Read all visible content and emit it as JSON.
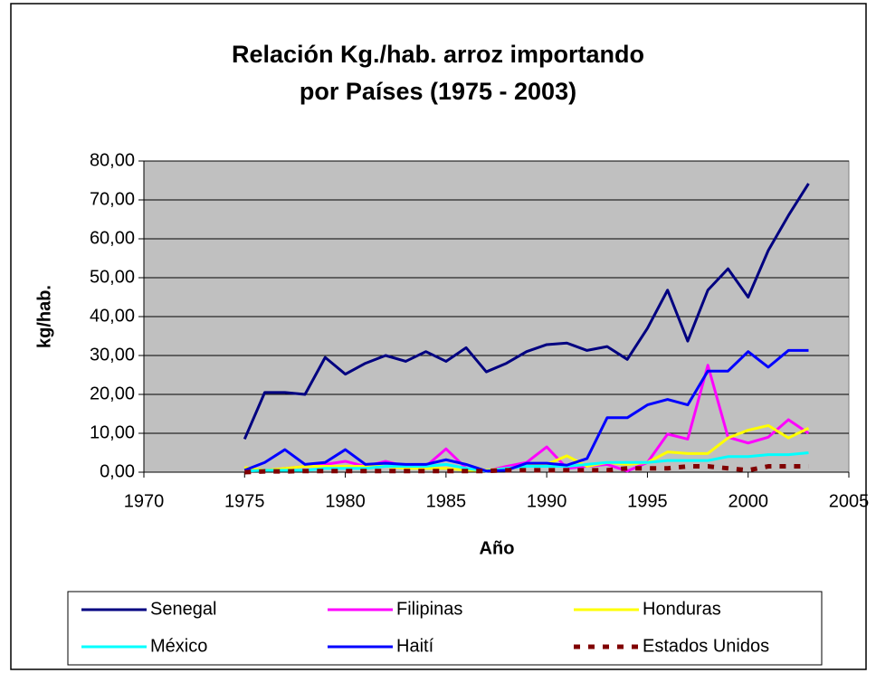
{
  "chart_data": {
    "type": "line",
    "title": [
      "Relación Kg./hab. arroz importando",
      "por Países (1975 - 2003)"
    ],
    "xlabel": "Año",
    "ylabel": "kg/hab.",
    "x": [
      1975,
      1976,
      1977,
      1978,
      1979,
      1980,
      1981,
      1982,
      1983,
      1984,
      1985,
      1986,
      1987,
      1988,
      1989,
      1990,
      1991,
      1992,
      1993,
      1994,
      1995,
      1996,
      1997,
      1998,
      1999,
      2000,
      2001,
      2002,
      2003
    ],
    "xlim": [
      1970,
      2005
    ],
    "xticks": [
      1970,
      1975,
      1980,
      1985,
      1990,
      1995,
      2000,
      2005
    ],
    "ylim": [
      0,
      80
    ],
    "yticks": [
      {
        "value": 0,
        "label": "0,00"
      },
      {
        "value": 10,
        "label": "10,00"
      },
      {
        "value": 20,
        "label": "20,00"
      },
      {
        "value": 30,
        "label": "30,00"
      },
      {
        "value": 40,
        "label": "40,00"
      },
      {
        "value": 50,
        "label": "50,00"
      },
      {
        "value": 60,
        "label": "60,00"
      },
      {
        "value": 70,
        "label": "70,00"
      },
      {
        "value": 80,
        "label": "80,00"
      }
    ],
    "grid": true,
    "legend": "bottom",
    "series": [
      {
        "name": "Senegal",
        "color": "#000080",
        "values": [
          8.5,
          20.5,
          20.5,
          20,
          29.5,
          25.2,
          28,
          30,
          28.5,
          31,
          28.5,
          32,
          25.8,
          28,
          31,
          32.8,
          33.2,
          31.3,
          32.3,
          29,
          37,
          46.8,
          33.7,
          46.8,
          52.3,
          45,
          57,
          66,
          74.2
        ]
      },
      {
        "name": "Filipinas",
        "color": "#ff00ff",
        "values": [
          0.5,
          0.5,
          1,
          1.5,
          2,
          2.8,
          1.5,
          2.8,
          1.5,
          1.5,
          6,
          1,
          0.3,
          1.5,
          2.5,
          6.5,
          1,
          1.5,
          2,
          0.3,
          2.5,
          9.8,
          8.5,
          27.5,
          9,
          7.5,
          9,
          13.5,
          10
        ]
      },
      {
        "name": "Honduras",
        "color": "#ffff00",
        "values": [
          1.2,
          0.5,
          1,
          1.5,
          1.5,
          1.5,
          1.5,
          1.5,
          1,
          1,
          1,
          0.5,
          0.5,
          1,
          1.5,
          2,
          4.2,
          1.5,
          2.5,
          2,
          2.5,
          5.2,
          4.8,
          4.8,
          8.8,
          10.8,
          12,
          8.8,
          11.3
        ]
      },
      {
        "name": "México",
        "color": "#00ffff",
        "values": [
          0.3,
          0.5,
          0.5,
          0.5,
          1,
          1,
          1,
          1.5,
          1.5,
          1.5,
          2,
          1,
          0.3,
          1,
          1.5,
          1.5,
          1.5,
          2,
          2.5,
          2.5,
          2.5,
          3,
          3,
          3,
          4,
          4,
          4.5,
          4.5,
          5
        ]
      },
      {
        "name": "Haití",
        "color": "#0000ff",
        "values": [
          0.5,
          2.5,
          5.8,
          2,
          2.5,
          5.8,
          2,
          2.3,
          2,
          2,
          3.2,
          2,
          0.3,
          0.5,
          2.3,
          2.3,
          1.8,
          3.5,
          14,
          14,
          17.3,
          18.7,
          17.3,
          26,
          26,
          31,
          27,
          31.3,
          31.3
        ]
      },
      {
        "name": "Estados Unidos",
        "color": "#800000",
        "dashed": true,
        "values": [
          0,
          0.2,
          0.2,
          0.3,
          0.3,
          0.3,
          0.3,
          0.3,
          0.3,
          0.3,
          0.3,
          0.3,
          0.3,
          0.5,
          0.5,
          0.5,
          0.5,
          0.5,
          0.5,
          1,
          1,
          1,
          1.5,
          1.5,
          1,
          0.5,
          1.5,
          1.5,
          1.5
        ]
      }
    ]
  }
}
